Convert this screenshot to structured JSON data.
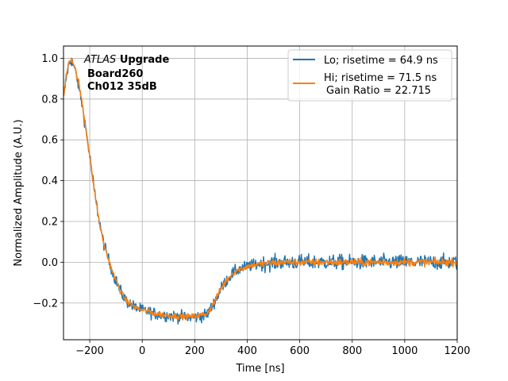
{
  "chart_data": {
    "type": "line",
    "xlabel": "Time [ns]",
    "ylabel": "Normalized Amplitude (A.U.)",
    "xlim": [
      -300,
      1200
    ],
    "ylim": [
      -0.38,
      1.06
    ],
    "x_ticks": [
      -200,
      0,
      200,
      400,
      600,
      800,
      1000,
      1200
    ],
    "y_ticks": [
      -0.2,
      0.0,
      0.2,
      0.4,
      0.6,
      0.8,
      1.0
    ],
    "x_tick_labels": [
      "−200",
      "0",
      "200",
      "400",
      "600",
      "800",
      "1000",
      "1200"
    ],
    "y_tick_labels": [
      "−0.2",
      "0.0",
      "0.2",
      "0.4",
      "0.6",
      "0.8",
      "1.0"
    ],
    "grid": true,
    "legend_position": "top-right",
    "annotation": {
      "italic": "ATLAS",
      "bold": "Upgrade",
      "line2": "Board260",
      "line3": "Ch012 35dB"
    },
    "series": [
      {
        "name": "Lo; risetime = 64.9 ns",
        "color": "#1f77b4",
        "noise": 0.018,
        "x": [
          -300,
          -290,
          -280,
          -270,
          -260,
          -250,
          -240,
          -230,
          -220,
          -210,
          -200,
          -190,
          -180,
          -170,
          -160,
          -150,
          -140,
          -130,
          -120,
          -110,
          -100,
          -90,
          -80,
          -70,
          -60,
          -50,
          -40,
          -30,
          -20,
          -10,
          0,
          20,
          40,
          60,
          80,
          100,
          120,
          140,
          160,
          180,
          200,
          220,
          240,
          250,
          260,
          270,
          280,
          290,
          300,
          310,
          320,
          330,
          340,
          350,
          360,
          370,
          380,
          390,
          400,
          420,
          440,
          460,
          480,
          500,
          550,
          600,
          650,
          700,
          750,
          800,
          850,
          900,
          950,
          1000,
          1050,
          1100,
          1150,
          1200
        ],
        "y": [
          0.8,
          0.9,
          0.97,
          0.99,
          0.96,
          0.91,
          0.85,
          0.78,
          0.7,
          0.61,
          0.52,
          0.42,
          0.33,
          0.25,
          0.18,
          0.11,
          0.06,
          0.02,
          -0.02,
          -0.06,
          -0.09,
          -0.12,
          -0.15,
          -0.17,
          -0.19,
          -0.2,
          -0.21,
          -0.22,
          -0.225,
          -0.23,
          -0.235,
          -0.24,
          -0.25,
          -0.255,
          -0.26,
          -0.26,
          -0.265,
          -0.265,
          -0.27,
          -0.27,
          -0.27,
          -0.265,
          -0.26,
          -0.25,
          -0.23,
          -0.21,
          -0.18,
          -0.16,
          -0.13,
          -0.11,
          -0.09,
          -0.075,
          -0.06,
          -0.05,
          -0.04,
          -0.035,
          -0.03,
          -0.025,
          -0.02,
          -0.015,
          -0.01,
          -0.007,
          -0.005,
          -0.003,
          0.0,
          0.0,
          0.0,
          0.0,
          0.0,
          0.0,
          0.0,
          0.0,
          0.0,
          0.0,
          0.0,
          0.0,
          0.0,
          0.0
        ]
      },
      {
        "name": "Hi; risetime = 71.5 ns",
        "name_line2": "Gain Ratio = 22.715",
        "color": "#ff7f0e",
        "noise": 0.009,
        "x": [
          -300,
          -290,
          -280,
          -270,
          -260,
          -250,
          -240,
          -230,
          -220,
          -210,
          -200,
          -190,
          -180,
          -170,
          -160,
          -150,
          -140,
          -130,
          -120,
          -110,
          -100,
          -90,
          -80,
          -70,
          -60,
          -50,
          -40,
          -30,
          -20,
          -10,
          0,
          20,
          40,
          60,
          80,
          100,
          120,
          140,
          160,
          180,
          200,
          220,
          240,
          250,
          260,
          270,
          280,
          290,
          300,
          310,
          320,
          330,
          340,
          350,
          360,
          370,
          380,
          390,
          400,
          420,
          440,
          460,
          480,
          500,
          550,
          600,
          650,
          700,
          750,
          800,
          850,
          900,
          950,
          1000,
          1050,
          1100,
          1150,
          1200
        ],
        "y": [
          0.81,
          0.91,
          0.98,
          1.0,
          0.97,
          0.92,
          0.86,
          0.79,
          0.7,
          0.61,
          0.52,
          0.42,
          0.33,
          0.25,
          0.17,
          0.11,
          0.06,
          0.02,
          -0.02,
          -0.06,
          -0.09,
          -0.12,
          -0.15,
          -0.17,
          -0.19,
          -0.2,
          -0.21,
          -0.22,
          -0.225,
          -0.23,
          -0.235,
          -0.24,
          -0.25,
          -0.255,
          -0.258,
          -0.26,
          -0.262,
          -0.265,
          -0.265,
          -0.267,
          -0.265,
          -0.26,
          -0.255,
          -0.245,
          -0.225,
          -0.205,
          -0.18,
          -0.155,
          -0.13,
          -0.11,
          -0.09,
          -0.075,
          -0.06,
          -0.05,
          -0.04,
          -0.035,
          -0.03,
          -0.025,
          -0.02,
          -0.015,
          -0.01,
          -0.007,
          -0.005,
          -0.003,
          0.0,
          0.0,
          0.0,
          0.0,
          0.0,
          0.0,
          0.0,
          0.0,
          0.0,
          0.0,
          0.0,
          0.0,
          0.0,
          0.0
        ]
      }
    ]
  }
}
